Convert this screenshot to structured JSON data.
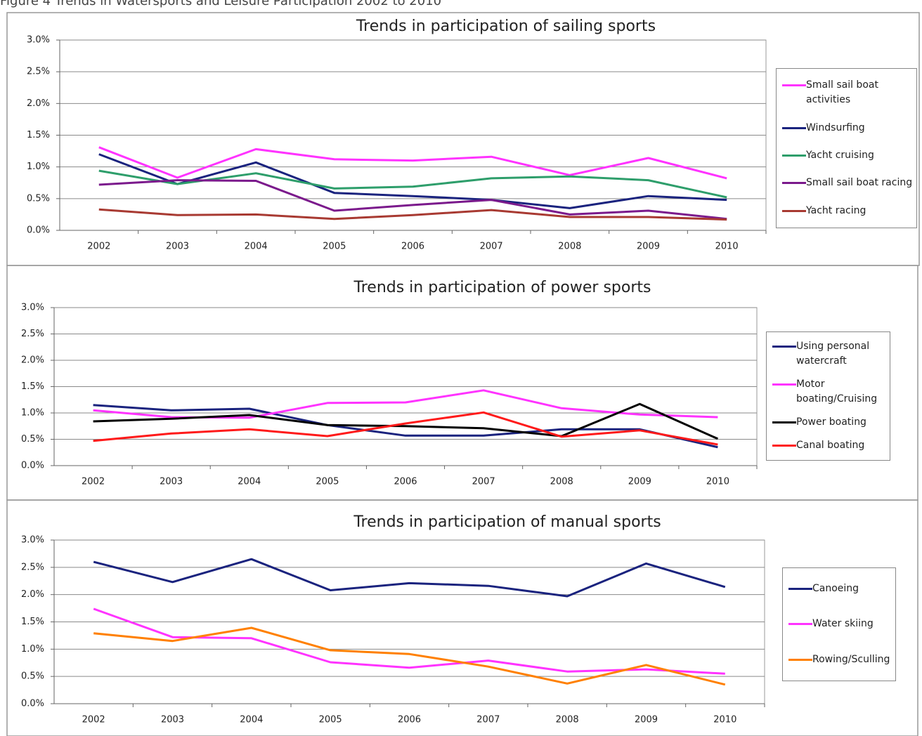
{
  "caption": "Figure 4 Trends in Watersports and Leisure Participation 2002 to 2010",
  "chart_data": [
    {
      "type": "line",
      "title": "Trends in participation of sailing sports",
      "categories": [
        "2002",
        "2003",
        "2004",
        "2005",
        "2006",
        "2007",
        "2008",
        "2009",
        "2010"
      ],
      "ylim": [
        0,
        3
      ],
      "yticks": [
        {
          "value": 0,
          "label": "0.0%"
        },
        {
          "value": 0.5,
          "label": "0.5%"
        },
        {
          "value": 1,
          "label": "1.0%"
        },
        {
          "value": 1.5,
          "label": "1.5%"
        },
        {
          "value": 2,
          "label": "2.0%"
        },
        {
          "value": 2.5,
          "label": "2.5%"
        },
        {
          "value": 3,
          "label": "3.0%"
        }
      ],
      "grid": true,
      "legend": "right",
      "series": [
        {
          "name": "Small sail boat activities",
          "color": "#ff33ff",
          "values": [
            1.31,
            0.83,
            1.28,
            1.12,
            1.1,
            1.16,
            0.87,
            1.14,
            0.82
          ]
        },
        {
          "name": "Windsurfing",
          "color": "#1a237e",
          "values": [
            1.2,
            0.73,
            1.07,
            0.59,
            0.54,
            0.48,
            0.35,
            0.54,
            0.48
          ]
        },
        {
          "name": "Yacht cruising",
          "color": "#2e9e6b",
          "values": [
            0.94,
            0.73,
            0.9,
            0.66,
            0.69,
            0.82,
            0.85,
            0.79,
            0.52
          ]
        },
        {
          "name": "Small sail boat racing",
          "color": "#7b1a8c",
          "values": [
            0.72,
            0.79,
            0.78,
            0.31,
            0.4,
            0.48,
            0.25,
            0.31,
            0.18
          ]
        },
        {
          "name": "Yacht racing",
          "color": "#a83a32",
          "values": [
            0.33,
            0.24,
            0.25,
            0.18,
            0.24,
            0.32,
            0.21,
            0.21,
            0.17
          ]
        }
      ]
    },
    {
      "type": "line",
      "title": "Trends in participation of power sports",
      "categories": [
        "2002",
        "2003",
        "2004",
        "2005",
        "2006",
        "2007",
        "2008",
        "2009",
        "2010"
      ],
      "ylim": [
        0,
        3
      ],
      "yticks": [
        {
          "value": 0,
          "label": "0.0%"
        },
        {
          "value": 0.5,
          "label": "0.5%"
        },
        {
          "value": 1,
          "label": "1.0%"
        },
        {
          "value": 1.5,
          "label": "1.5%"
        },
        {
          "value": 2,
          "label": "2.0%"
        },
        {
          "value": 2.5,
          "label": "2.5%"
        },
        {
          "value": 3,
          "label": "3.0%"
        }
      ],
      "grid": true,
      "legend": "right",
      "series": [
        {
          "name": "Using personal watercraft",
          "color": "#1a237e",
          "values": [
            1.15,
            1.05,
            1.08,
            0.77,
            0.57,
            0.57,
            0.69,
            0.69,
            0.35
          ]
        },
        {
          "name": "Motor boating/Cruising",
          "color": "#ff33ff",
          "values": [
            1.05,
            0.92,
            0.91,
            1.19,
            1.2,
            1.43,
            1.09,
            0.97,
            0.92
          ]
        },
        {
          "name": "Power boating",
          "color": "#000000",
          "values": [
            0.84,
            0.89,
            0.96,
            0.77,
            0.75,
            0.71,
            0.56,
            1.17,
            0.51
          ]
        },
        {
          "name": "Canal boating",
          "color": "#ff1a1a",
          "values": [
            0.47,
            0.61,
            0.69,
            0.56,
            0.8,
            1.01,
            0.55,
            0.67,
            0.4
          ]
        }
      ]
    },
    {
      "type": "line",
      "title": "Trends in participation of manual sports",
      "categories": [
        "2002",
        "2003",
        "2004",
        "2005",
        "2006",
        "2007",
        "2008",
        "2009",
        "2010"
      ],
      "ylim": [
        0,
        3
      ],
      "yticks": [
        {
          "value": 0,
          "label": "0.0%"
        },
        {
          "value": 0.5,
          "label": "0.5%"
        },
        {
          "value": 1,
          "label": "1.0%"
        },
        {
          "value": 1.5,
          "label": "1.5%"
        },
        {
          "value": 2,
          "label": "2.0%"
        },
        {
          "value": 2.5,
          "label": "2.5%"
        },
        {
          "value": 3,
          "label": "3.0%"
        }
      ],
      "grid": true,
      "legend": "right",
      "series": [
        {
          "name": "Canoeing",
          "color": "#1a237e",
          "values": [
            2.6,
            2.23,
            2.65,
            2.08,
            2.21,
            2.16,
            1.97,
            2.57,
            2.14
          ]
        },
        {
          "name": "Water skiing",
          "color": "#ff33ff",
          "values": [
            1.74,
            1.22,
            1.2,
            0.76,
            0.66,
            0.79,
            0.59,
            0.63,
            0.55
          ]
        },
        {
          "name": "Rowing/Sculling",
          "color": "#ff8000",
          "values": [
            1.29,
            1.15,
            1.39,
            0.98,
            0.91,
            0.68,
            0.37,
            0.71,
            0.35
          ]
        }
      ]
    }
  ]
}
